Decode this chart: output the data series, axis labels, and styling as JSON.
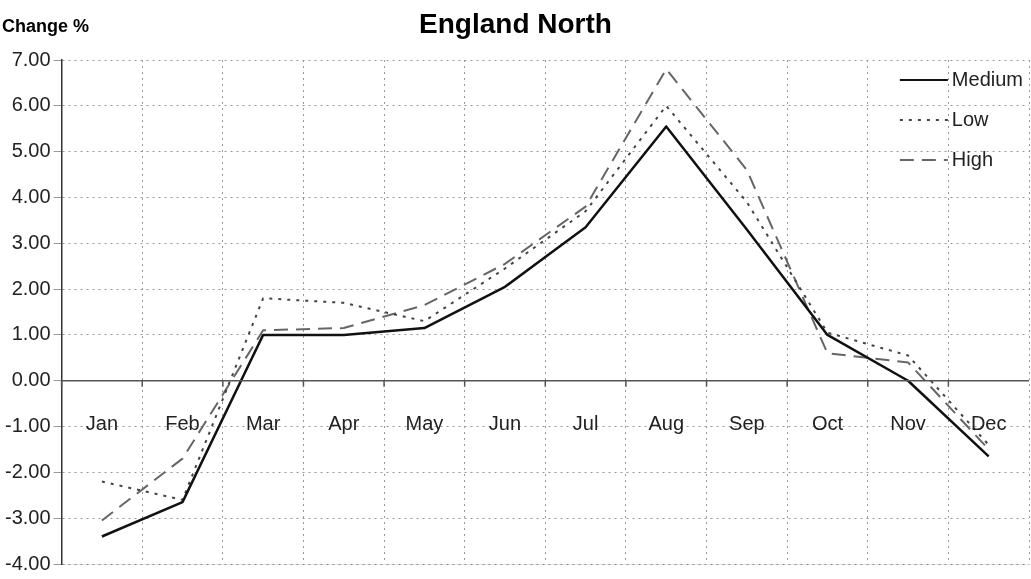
{
  "chart_data": {
    "type": "line",
    "title": "England North",
    "ylabel": "Change %",
    "categories": [
      "Jan",
      "Feb",
      "Mar",
      "Apr",
      "May",
      "Jun",
      "Jul",
      "Aug",
      "Sep",
      "Oct",
      "Nov",
      "Dec"
    ],
    "series": [
      {
        "name": "Medium",
        "color": "#111111",
        "line_style": "solid",
        "values": [
          -3.4,
          -2.65,
          1.0,
          1.0,
          1.15,
          2.05,
          3.35,
          5.55,
          3.3,
          1.0,
          0.0,
          -1.65
        ]
      },
      {
        "name": "Low",
        "color": "#444444",
        "line_style": "dotted",
        "values": [
          -2.2,
          -2.6,
          1.8,
          1.7,
          1.3,
          2.45,
          3.7,
          6.0,
          3.9,
          1.05,
          0.55,
          -1.4
        ]
      },
      {
        "name": "High",
        "color": "#666666",
        "line_style": "dashed",
        "values": [
          -3.05,
          -1.7,
          1.1,
          1.15,
          1.65,
          2.55,
          3.8,
          6.8,
          4.6,
          0.6,
          0.4,
          -1.5
        ]
      }
    ],
    "ylim": [
      -4,
      7
    ],
    "yticks": [
      {
        "value": -4,
        "label": "-4.00"
      },
      {
        "value": -3,
        "label": "-3.00"
      },
      {
        "value": -2,
        "label": "-2.00"
      },
      {
        "value": -1,
        "label": "-1.00"
      },
      {
        "value": 0,
        "label": "0.00"
      },
      {
        "value": 1,
        "label": "1.00"
      },
      {
        "value": 2,
        "label": "2.00"
      },
      {
        "value": 3,
        "label": "3.00"
      },
      {
        "value": 4,
        "label": "4.00"
      },
      {
        "value": 5,
        "label": "5.00"
      },
      {
        "value": 6,
        "label": "6.00"
      },
      {
        "value": 7,
        "label": "7.00"
      }
    ],
    "grid": true,
    "legend": "top right",
    "marker": "none"
  }
}
